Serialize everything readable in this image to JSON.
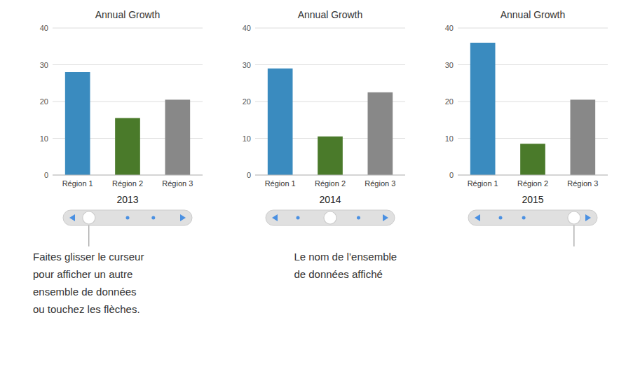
{
  "chart_data": [
    {
      "type": "bar",
      "title": "Annual Growth",
      "xlabel": "2013",
      "categories": [
        "Région 1",
        "Région 2",
        "Région 3"
      ],
      "values": [
        28,
        15.5,
        20.5
      ],
      "colors": [
        "#3a8bbf",
        "#4a7a2a",
        "#888888"
      ],
      "ylim": [
        0,
        40
      ],
      "yticks": [
        0,
        10,
        20,
        30,
        40
      ],
      "grid": true,
      "annotations": [
        "Faites glisser le curseur\npour afficher un autre\nensemble de données\nou touchez les flèches."
      ]
    },
    {
      "type": "bar",
      "title": "Annual Growth",
      "xlabel": "2014",
      "categories": [
        "Région 1",
        "Région 2",
        "Région 3"
      ],
      "values": [
        29,
        10.5,
        22.5
      ],
      "colors": [
        "#3a8bbf",
        "#4a7a2a",
        "#888888"
      ],
      "ylim": [
        0,
        40
      ],
      "yticks": [
        0,
        10,
        20,
        30,
        40
      ],
      "grid": true,
      "annotations": [
        "Le nom de l’ensemble\nde données affiché"
      ]
    },
    {
      "type": "bar",
      "title": "Annual Growth",
      "xlabel": "2015",
      "categories": [
        "Région 1",
        "Région 2",
        "Région 3"
      ],
      "values": [
        36,
        8.5,
        20.5
      ],
      "colors": [
        "#3a8bbf",
        "#4a7a2a",
        "#888888"
      ],
      "ylim": [
        0,
        40
      ],
      "yticks": [
        0,
        10,
        20,
        30,
        40
      ],
      "grid": true
    }
  ]
}
